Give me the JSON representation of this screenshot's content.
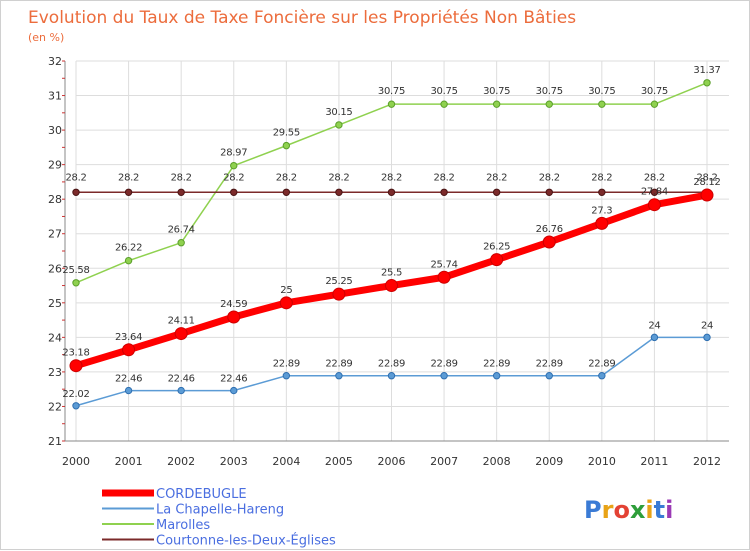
{
  "chart_data": {
    "type": "line",
    "title": "Evolution du Taux de Taxe Foncière sur les Propriétés Non Bâties",
    "subtitle": "(en %)",
    "xlabel": "",
    "ylabel": "",
    "categories": [
      "2000",
      "2001",
      "2002",
      "2003",
      "2004",
      "2005",
      "2006",
      "2007",
      "2008",
      "2009",
      "2010",
      "2011",
      "2012"
    ],
    "ylim": [
      21,
      32
    ],
    "yticks": [
      "21",
      "22",
      "23",
      "24",
      "25",
      "26",
      "27",
      "28",
      "29",
      "30",
      "31",
      "32"
    ],
    "grid": true,
    "series": [
      {
        "name": "CORDEBUGLE",
        "color": "#ff0000",
        "values": [
          23.18,
          23.64,
          24.11,
          24.59,
          25,
          25.25,
          25.5,
          25.74,
          26.25,
          26.76,
          27.3,
          27.84,
          28.12
        ],
        "labels": [
          "23.18",
          "23.64",
          "24.11",
          "24.59",
          "25",
          "25.25",
          "25.5",
          "25.74",
          "26.25",
          "26.76",
          "27.3",
          "27.84",
          "28.12"
        ]
      },
      {
        "name": "La Chapelle-Hareng",
        "color": "#5b9bd5",
        "values": [
          22.02,
          22.46,
          22.46,
          22.46,
          22.89,
          22.89,
          22.89,
          22.89,
          22.89,
          22.89,
          22.89,
          24,
          24
        ],
        "labels": [
          "22.02",
          "22.46",
          "22.46",
          "22.46",
          "22.89",
          "22.89",
          "22.89",
          "22.89",
          "22.89",
          "22.89",
          "22.89",
          "24",
          "24"
        ]
      },
      {
        "name": "Marolles",
        "color": "#8fd14f",
        "values": [
          25.58,
          26.22,
          26.74,
          28.97,
          29.55,
          30.15,
          30.75,
          30.75,
          30.75,
          30.75,
          30.75,
          30.75,
          31.37
        ],
        "labels": [
          "25.58",
          "26.22",
          "26.74",
          "28.97",
          "29.55",
          "30.15",
          "30.75",
          "30.75",
          "30.75",
          "30.75",
          "30.75",
          "30.75",
          "31.37"
        ]
      },
      {
        "name": "Courtonne-les-Deux-Églises",
        "color": "#7b2a2a",
        "values": [
          28.2,
          28.2,
          28.2,
          28.2,
          28.2,
          28.2,
          28.2,
          28.2,
          28.2,
          28.2,
          28.2,
          28.2,
          28.2
        ],
        "labels": [
          "28.2",
          "28.2",
          "28.2",
          "28.2",
          "28.2",
          "28.2",
          "28.2",
          "28.2",
          "28.2",
          "28.2",
          "28.2",
          "28.2",
          "28.2"
        ]
      }
    ],
    "legend_position": "bottom-left"
  },
  "brand": {
    "text": "Proxiti"
  }
}
